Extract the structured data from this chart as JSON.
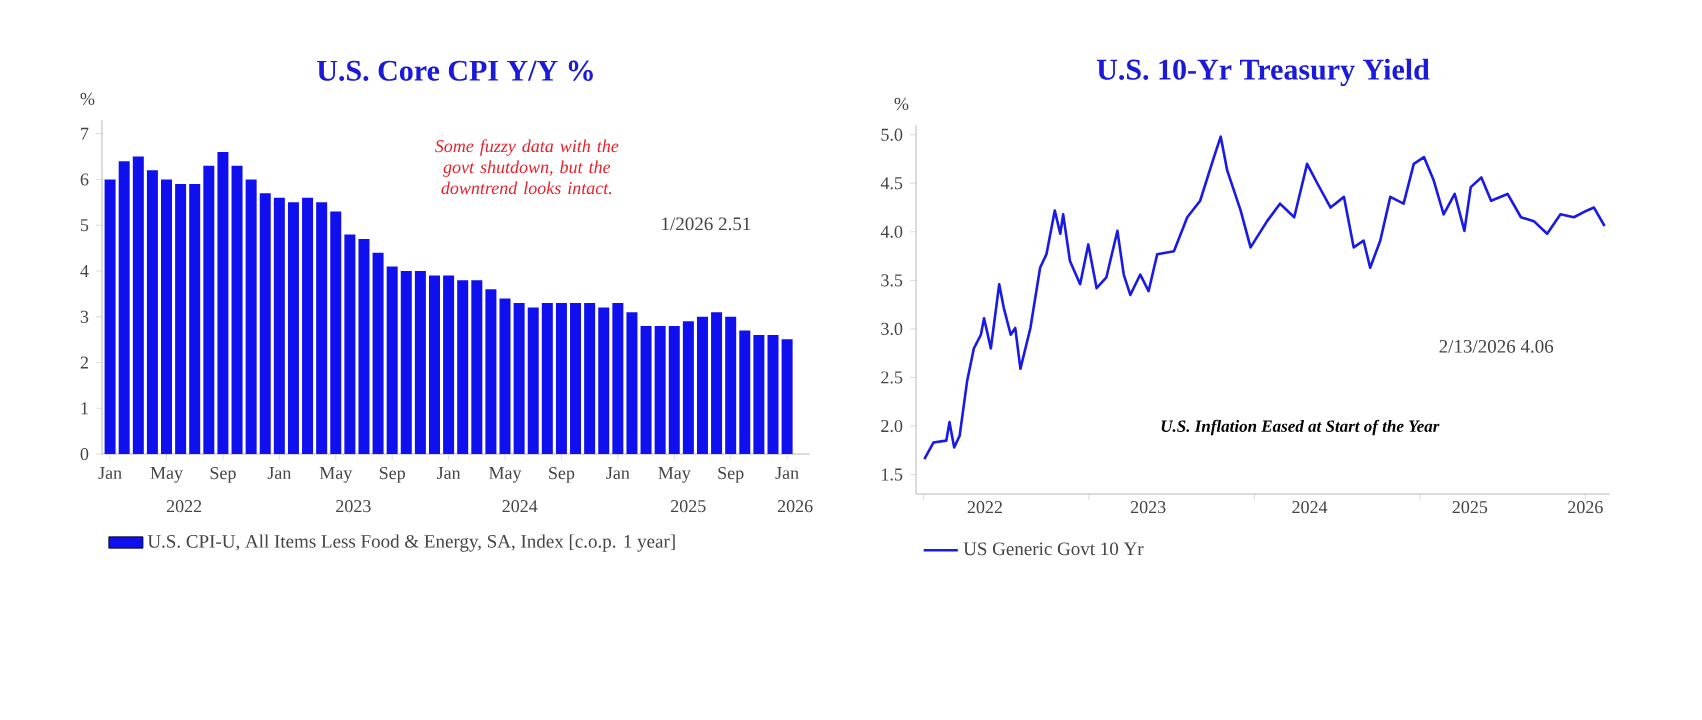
{
  "chart_data": [
    {
      "type": "bar",
      "title": "U.S. Core CPI Y/Y %",
      "ylabel": "%",
      "x": [
        "2022-01",
        "2022-02",
        "2022-03",
        "2022-04",
        "2022-05",
        "2022-06",
        "2022-07",
        "2022-08",
        "2022-09",
        "2022-10",
        "2022-11",
        "2022-12",
        "2023-01",
        "2023-02",
        "2023-03",
        "2023-04",
        "2023-05",
        "2023-06",
        "2023-07",
        "2023-08",
        "2023-09",
        "2023-10",
        "2023-11",
        "2023-12",
        "2024-01",
        "2024-02",
        "2024-03",
        "2024-04",
        "2024-05",
        "2024-06",
        "2024-07",
        "2024-08",
        "2024-09",
        "2024-10",
        "2024-11",
        "2024-12",
        "2025-01",
        "2025-02",
        "2025-03",
        "2025-04",
        "2025-05",
        "2025-06",
        "2025-07",
        "2025-08",
        "2025-09",
        "2025-10",
        "2025-11",
        "2025-12",
        "2026-01"
      ],
      "series": [
        {
          "name": "U.S. CPI-U, All Items Less Food & Energy, SA, Index [c.o.p. 1 year]",
          "color": "#1010ee",
          "values": [
            6.0,
            6.4,
            6.5,
            6.2,
            6.0,
            5.9,
            5.9,
            6.3,
            6.6,
            6.3,
            6.0,
            5.7,
            5.6,
            5.5,
            5.6,
            5.5,
            5.3,
            4.8,
            4.7,
            4.4,
            4.1,
            4.0,
            4.0,
            3.9,
            3.9,
            3.8,
            3.8,
            3.6,
            3.4,
            3.3,
            3.2,
            3.3,
            3.3,
            3.3,
            3.3,
            3.2,
            3.3,
            3.1,
            2.8,
            2.8,
            2.8,
            2.9,
            3.0,
            3.1,
            3.0,
            2.7,
            2.6,
            2.6,
            2.51
          ]
        }
      ],
      "xlim": [
        "2021-12-14",
        "2026-02-20"
      ],
      "ylim": [
        0,
        7.3
      ],
      "yticks": [
        0,
        1,
        2,
        3,
        4,
        5,
        6,
        7
      ],
      "xticks": [
        {
          "value": "2022-01",
          "label": "Jan"
        },
        {
          "value": "2022-05",
          "label": "May"
        },
        {
          "value": "2022-09",
          "label": "Sep"
        },
        {
          "value": "2023-01",
          "label": "Jan"
        },
        {
          "value": "2023-05",
          "label": "May"
        },
        {
          "value": "2023-09",
          "label": "Sep"
        },
        {
          "value": "2024-01",
          "label": "Jan"
        },
        {
          "value": "2024-05",
          "label": "May"
        },
        {
          "value": "2024-09",
          "label": "Sep"
        },
        {
          "value": "2025-01",
          "label": "Jan"
        },
        {
          "value": "2025-05",
          "label": "May"
        },
        {
          "value": "2025-09",
          "label": "Sep"
        },
        {
          "value": "2026-01",
          "label": "Jan"
        }
      ],
      "legend": "bottom",
      "annotations": [
        "Some fuzzy data with the govt shutdown, but the downtrend looks intact.",
        "1/2026 2.51",
        "2022",
        "2023",
        "2024",
        "2025",
        "2026"
      ]
    },
    {
      "type": "line",
      "title": "U.S. 10-Yr Treasury Yield",
      "ylabel": "%",
      "x": [
        "2022-01-03",
        "2022-01-23",
        "2022-02-21",
        "2022-02-28",
        "2022-03-08",
        "2022-03-20",
        "2022-04-06",
        "2022-04-21",
        "2022-05-06",
        "2022-05-13",
        "2022-05-28",
        "2022-06-16",
        "2022-06-26",
        "2022-07-11",
        "2022-07-21",
        "2022-08-02",
        "2022-08-24",
        "2022-09-15",
        "2022-09-29",
        "2022-10-17",
        "2022-10-29",
        "2022-11-05",
        "2022-11-20",
        "2022-12-12",
        "2022-12-30",
        "2023-01-18",
        "2023-02-09",
        "2023-03-03",
        "2023-03-17",
        "2023-04-01",
        "2023-04-23",
        "2023-05-11",
        "2023-05-30",
        "2023-07-06",
        "2023-08-05",
        "2023-09-03",
        "2023-10-03",
        "2023-10-18",
        "2023-11-02",
        "2023-12-01",
        "2023-12-23",
        "2024-01-29",
        "2024-02-27",
        "2024-03-28",
        "2024-04-26",
        "2024-05-18",
        "2024-06-17",
        "2024-07-16",
        "2024-08-07",
        "2024-08-29",
        "2024-09-13",
        "2024-10-05",
        "2024-10-27",
        "2024-11-26",
        "2024-12-18",
        "2025-01-10",
        "2025-02-01",
        "2025-02-23",
        "2025-03-17",
        "2025-04-08",
        "2025-04-22",
        "2025-05-15",
        "2025-06-06",
        "2025-07-12",
        "2025-08-11",
        "2025-09-09",
        "2025-10-08",
        "2025-11-07",
        "2025-12-06",
        "2026-01-05",
        "2026-01-20",
        "2026-02-13"
      ],
      "series": [
        {
          "name": "US Generic Govt 10 Yr",
          "color": "#1a1ae6",
          "values": [
            1.66,
            1.83,
            1.85,
            2.04,
            1.78,
            1.9,
            2.46,
            2.8,
            2.94,
            3.11,
            2.8,
            3.46,
            3.22,
            2.94,
            3.01,
            2.59,
            3.01,
            3.63,
            3.77,
            4.22,
            3.98,
            4.18,
            3.7,
            3.46,
            3.87,
            3.42,
            3.53,
            4.01,
            3.56,
            3.35,
            3.56,
            3.39,
            3.77,
            3.8,
            4.15,
            4.32,
            4.77,
            4.98,
            4.63,
            4.22,
            3.84,
            4.11,
            4.29,
            4.15,
            4.7,
            4.5,
            4.25,
            4.36,
            3.84,
            3.91,
            3.63,
            3.91,
            4.36,
            4.29,
            4.7,
            4.77,
            4.53,
            4.18,
            4.39,
            4.01,
            4.46,
            4.56,
            4.32,
            4.39,
            4.15,
            4.11,
            3.98,
            4.18,
            4.15,
            4.22,
            4.25,
            4.06
          ]
        }
      ],
      "xlim": [
        "2021-12-15",
        "2026-02-25"
      ],
      "ylim": [
        1.3,
        5.1
      ],
      "yticks": [
        {
          "value": 1.5,
          "label": "1.5"
        },
        {
          "value": 2.0,
          "label": "2.0"
        },
        {
          "value": 2.5,
          "label": "2.5"
        },
        {
          "value": 3.0,
          "label": "3.0"
        },
        {
          "value": 3.5,
          "label": "3.5"
        },
        {
          "value": 4.0,
          "label": "4.0"
        },
        {
          "value": 4.5,
          "label": "4.5"
        },
        {
          "value": 5.0,
          "label": "5.0"
        }
      ],
      "xticks": [
        {
          "value": "2022-01-01",
          "label": null
        },
        {
          "value": "2023-01-01",
          "label": null
        },
        {
          "value": "2024-01-01",
          "label": null
        },
        {
          "value": "2025-01-01",
          "label": null
        },
        {
          "value": "2026-01-01",
          "label": null
        },
        {
          "value": "2022-05-15",
          "label": "2022"
        },
        {
          "value": "2023-05-10",
          "label": "2023"
        },
        {
          "value": "2024-05-01",
          "label": "2024"
        },
        {
          "value": "2025-04-20",
          "label": "2025"
        },
        {
          "value": "2026-01-01",
          "label": "2026"
        }
      ],
      "legend": "bottom",
      "annotations": [
        "U.S. Inflation Eased at Start of the Year",
        "2/13/2026 4.06"
      ]
    }
  ]
}
